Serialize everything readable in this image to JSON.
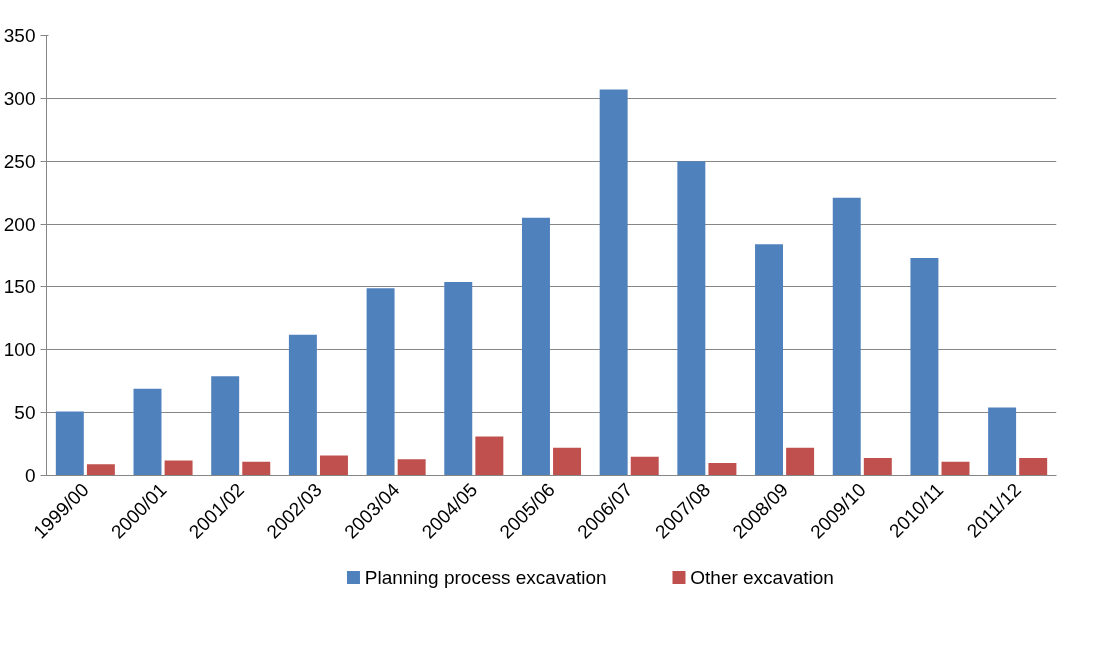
{
  "chart_data": {
    "type": "bar",
    "categories": [
      "1999/00",
      "2000/01",
      "2001/02",
      "2002/03",
      "2003/04",
      "2004/05",
      "2005/06",
      "2006/07",
      "2007/08",
      "2008/09",
      "2009/10",
      "2010/11",
      "2011/12"
    ],
    "series": [
      {
        "name": "Planning process excavation",
        "color": "#4f81bd",
        "values": [
          51,
          69,
          79,
          112,
          149,
          154,
          205,
          307,
          250,
          184,
          221,
          173,
          54
        ]
      },
      {
        "name": "Other excavation",
        "color": "#c0504d",
        "values": [
          9,
          12,
          11,
          16,
          13,
          31,
          22,
          15,
          10,
          22,
          14,
          11,
          14
        ]
      }
    ],
    "ylim": [
      0,
      350
    ],
    "yticks": [
      0,
      50,
      100,
      150,
      200,
      250,
      300,
      350
    ],
    "grid": "y",
    "legend": "bottom"
  }
}
